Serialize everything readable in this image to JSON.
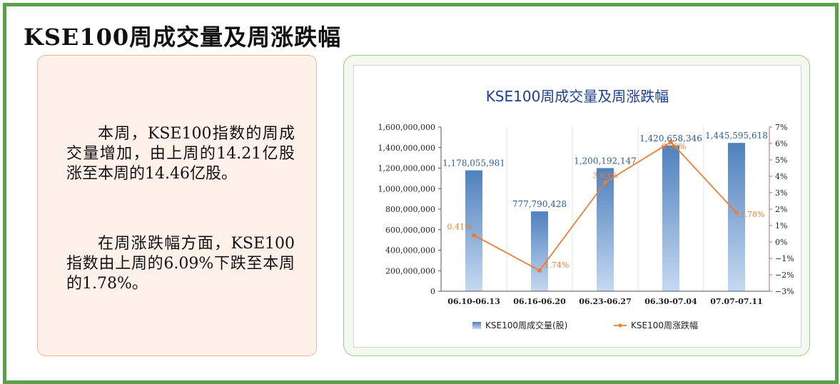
{
  "header": {
    "title": "KSE100周成交量及周涨跌幅"
  },
  "commentary": {
    "paragraph1": "本周，KSE100指数的周成交量增加，由上周的14.21亿股涨至本周的14.46亿股。",
    "paragraph2": "在周涨跌幅方面，KSE100指数由上周的6.09%下跌至本周的1.78%。"
  },
  "colors": {
    "bar_top": "#4f81bd",
    "bar_bottom": "#c5d9f1",
    "line": "#ee7d2f",
    "frame": "#5aa14a"
  },
  "chart_data": {
    "type": "bar",
    "title": "KSE100周成交量及周涨跌幅",
    "categories": [
      "06.10-06.13",
      "06.16-06.20",
      "06.23-06.27",
      "06.30-07.04",
      "07.07-07.11"
    ],
    "series": [
      {
        "name": "KSE100周成交量(股)",
        "type": "bar",
        "axis": "left",
        "values": [
          1178055981,
          777790428,
          1200192147,
          1420658346,
          1445595618
        ],
        "labels": [
          "1,178,055,981",
          "777,790,428",
          "1,200,192,147",
          "1,420,658,346",
          "1,445,595,618"
        ]
      },
      {
        "name": "KSE100周涨跌幅",
        "type": "line",
        "axis": "right",
        "values": [
          0.41,
          -1.74,
          3.63,
          6.09,
          1.78
        ],
        "labels": [
          "0.41%",
          "-1.74%",
          "3.63%",
          "6.09%",
          "1.78%"
        ]
      }
    ],
    "y_left": {
      "min": 0,
      "max": 1600000000,
      "ticks": [
        "0",
        "200,000,000",
        "400,000,000",
        "600,000,000",
        "800,000,000",
        "1,000,000,000",
        "1,200,000,000",
        "1,400,000,000",
        "1,600,000,000"
      ]
    },
    "y_right": {
      "min": -3,
      "max": 7,
      "ticks": [
        "−3%",
        "−2%",
        "−1%",
        "0%",
        "1%",
        "2%",
        "3%",
        "4%",
        "5%",
        "6%",
        "7%"
      ]
    },
    "legend_position": "bottom",
    "grid": "vertical"
  }
}
